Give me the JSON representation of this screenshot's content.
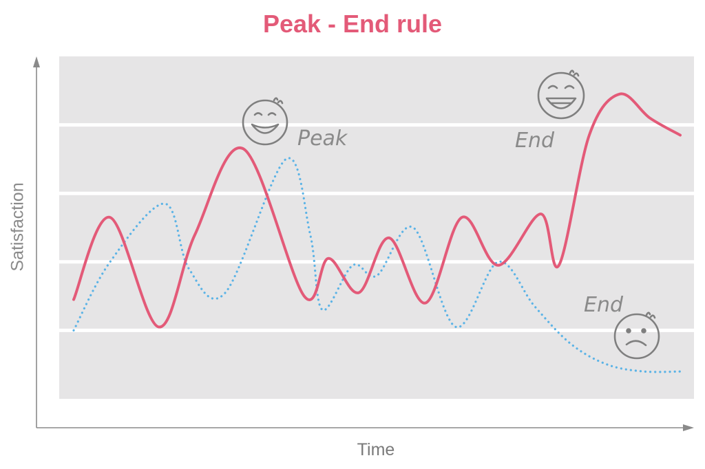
{
  "colors": {
    "accent": "#e35a78",
    "dotted": "#5bb3e6",
    "panel": "#e6e5e6",
    "gridline": "#ffffff",
    "axis": "#8a8a8a"
  },
  "chart_data": {
    "type": "line",
    "title": "Peak - End rule",
    "xlabel": "Time",
    "ylabel": "Satisfaction",
    "xlim": [
      0,
      100
    ],
    "ylim": [
      0,
      100
    ],
    "grid": true,
    "series": [
      {
        "style": "solid",
        "color": "#e35a78",
        "x": [
          0,
          6,
          14,
          20,
          28,
          38,
          42,
          47,
          52,
          58,
          64,
          70,
          77,
          80,
          85,
          90,
          95,
          100
        ],
        "y": [
          29,
          53,
          21,
          48,
          73,
          30,
          41,
          31,
          47,
          28,
          53,
          39,
          54,
          39,
          77,
          89,
          82,
          77
        ]
      },
      {
        "style": "dotted",
        "color": "#5bb3e6",
        "x": [
          0,
          6,
          15,
          19,
          25,
          35,
          39,
          41,
          46,
          50,
          56,
          63,
          70,
          76,
          82,
          88,
          94,
          100
        ],
        "y": [
          20,
          40,
          57,
          38,
          31,
          70,
          48,
          26,
          39,
          36,
          50,
          21,
          40,
          27,
          16,
          10,
          8,
          8
        ]
      }
    ],
    "annotations": [
      {
        "text": "Peak",
        "icon": "laughing-face-icon"
      },
      {
        "text": "End",
        "icon": "laughing-face-icon"
      },
      {
        "text": "End",
        "icon": "sad-face-icon"
      }
    ]
  }
}
